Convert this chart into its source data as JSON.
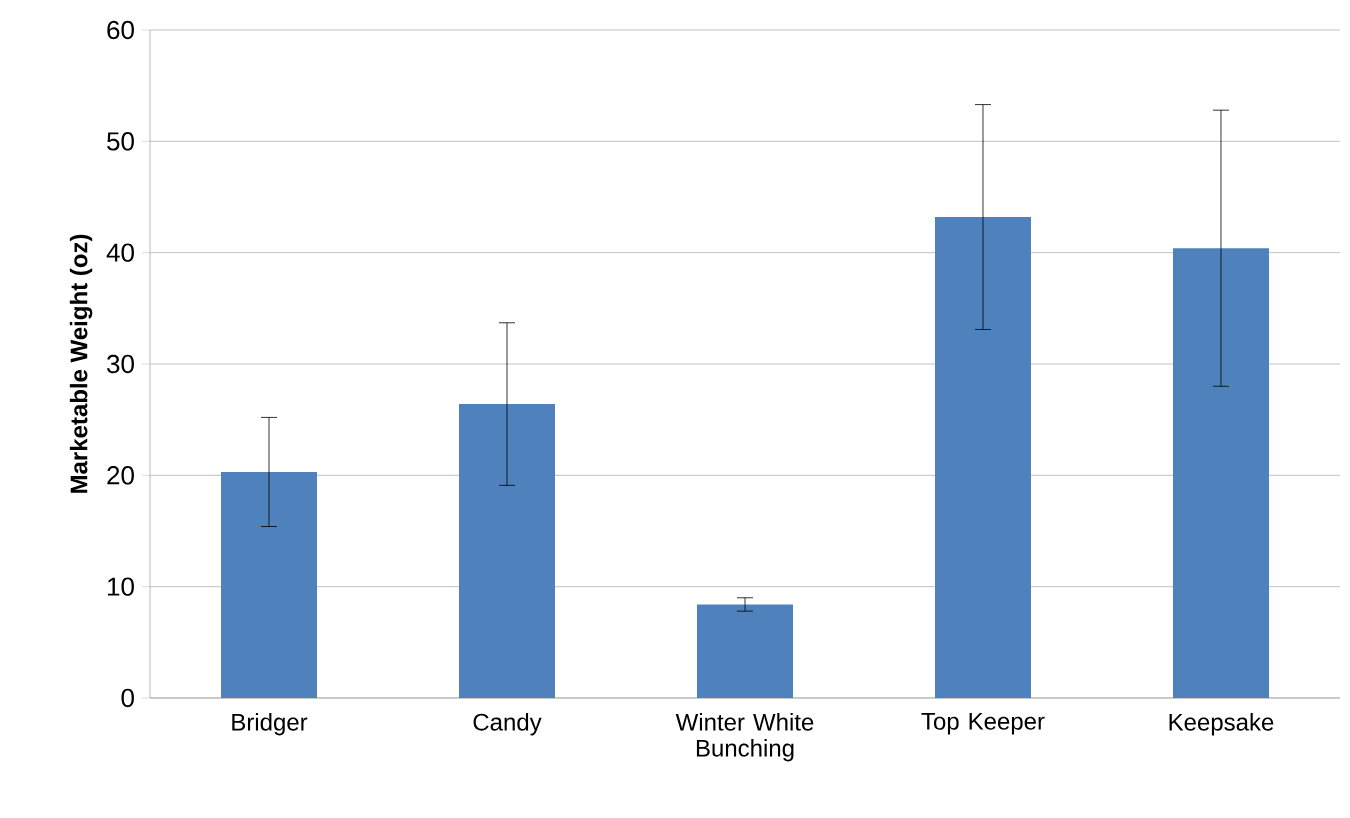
{
  "chart_data": {
    "type": "bar",
    "ylabel": "Marketable Weight (oz)",
    "categories": [
      "Bridger",
      "Candy",
      "Winter White Bunching",
      "Top Keeper",
      "Keepsake"
    ],
    "values": [
      20.3,
      26.4,
      8.4,
      43.2,
      40.4
    ],
    "errors": [
      4.9,
      7.3,
      0.6,
      10.1,
      12.4
    ],
    "color": "#4f81bd",
    "ylim": [
      0,
      60
    ],
    "yticks": [
      0,
      10,
      20,
      30,
      40,
      50,
      60
    ],
    "grid": "y"
  }
}
